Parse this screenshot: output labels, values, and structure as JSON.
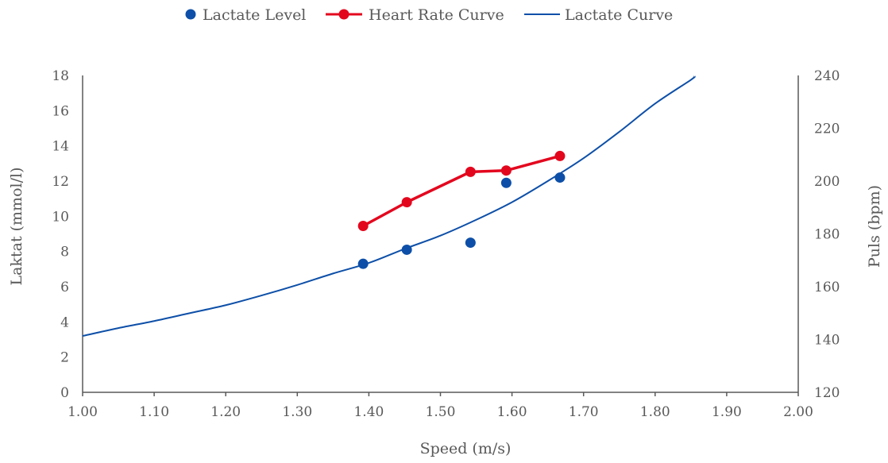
{
  "chart_data": {
    "type": "line",
    "title": "",
    "xlabel": "Speed (m/s)",
    "ylabel": "Laktat (mmol/l)",
    "y2label": "Puls (bpm)",
    "xlim": [
      1.0,
      2.0
    ],
    "ylim": [
      0,
      18
    ],
    "y2lim": [
      120,
      240
    ],
    "x_ticks": [
      "1.00",
      "1.10",
      "1.20",
      "1.30",
      "1.40",
      "1.50",
      "1.60",
      "1.70",
      "1.80",
      "1.90",
      "2.00"
    ],
    "y_ticks": [
      "0",
      "2",
      "4",
      "6",
      "8",
      "10",
      "12",
      "14",
      "16",
      "18"
    ],
    "y2_ticks": [
      "120",
      "140",
      "160",
      "180",
      "200",
      "220",
      "240"
    ],
    "grid": false,
    "legend_position": "top",
    "series": [
      {
        "name": "Lactate Level",
        "kind": "scatter",
        "axis": "left",
        "color": "#0D4FA8",
        "x": [
          1.392,
          1.453,
          1.542,
          1.592,
          1.667
        ],
        "y": [
          7.3,
          8.1,
          8.5,
          11.9,
          12.2
        ]
      },
      {
        "name": "Heart Rate Curve",
        "kind": "line-markers",
        "axis": "right",
        "color": "#E3071E",
        "x": [
          1.392,
          1.453,
          1.542,
          1.592,
          1.667
        ],
        "y": [
          183,
          192,
          203.5,
          204,
          209.5
        ]
      },
      {
        "name": "Lactate Curve",
        "kind": "line",
        "axis": "left",
        "color": "#0D4FA8",
        "x": [
          1.0,
          1.05,
          1.1,
          1.15,
          1.2,
          1.25,
          1.3,
          1.35,
          1.4,
          1.45,
          1.5,
          1.55,
          1.6,
          1.65,
          1.7,
          1.75,
          1.8,
          1.85,
          1.855
        ],
        "y": [
          3.2,
          3.65,
          4.05,
          4.5,
          4.95,
          5.5,
          6.1,
          6.75,
          7.35,
          8.15,
          8.9,
          9.8,
          10.8,
          12.0,
          13.3,
          14.8,
          16.4,
          17.75,
          17.95
        ]
      }
    ]
  }
}
